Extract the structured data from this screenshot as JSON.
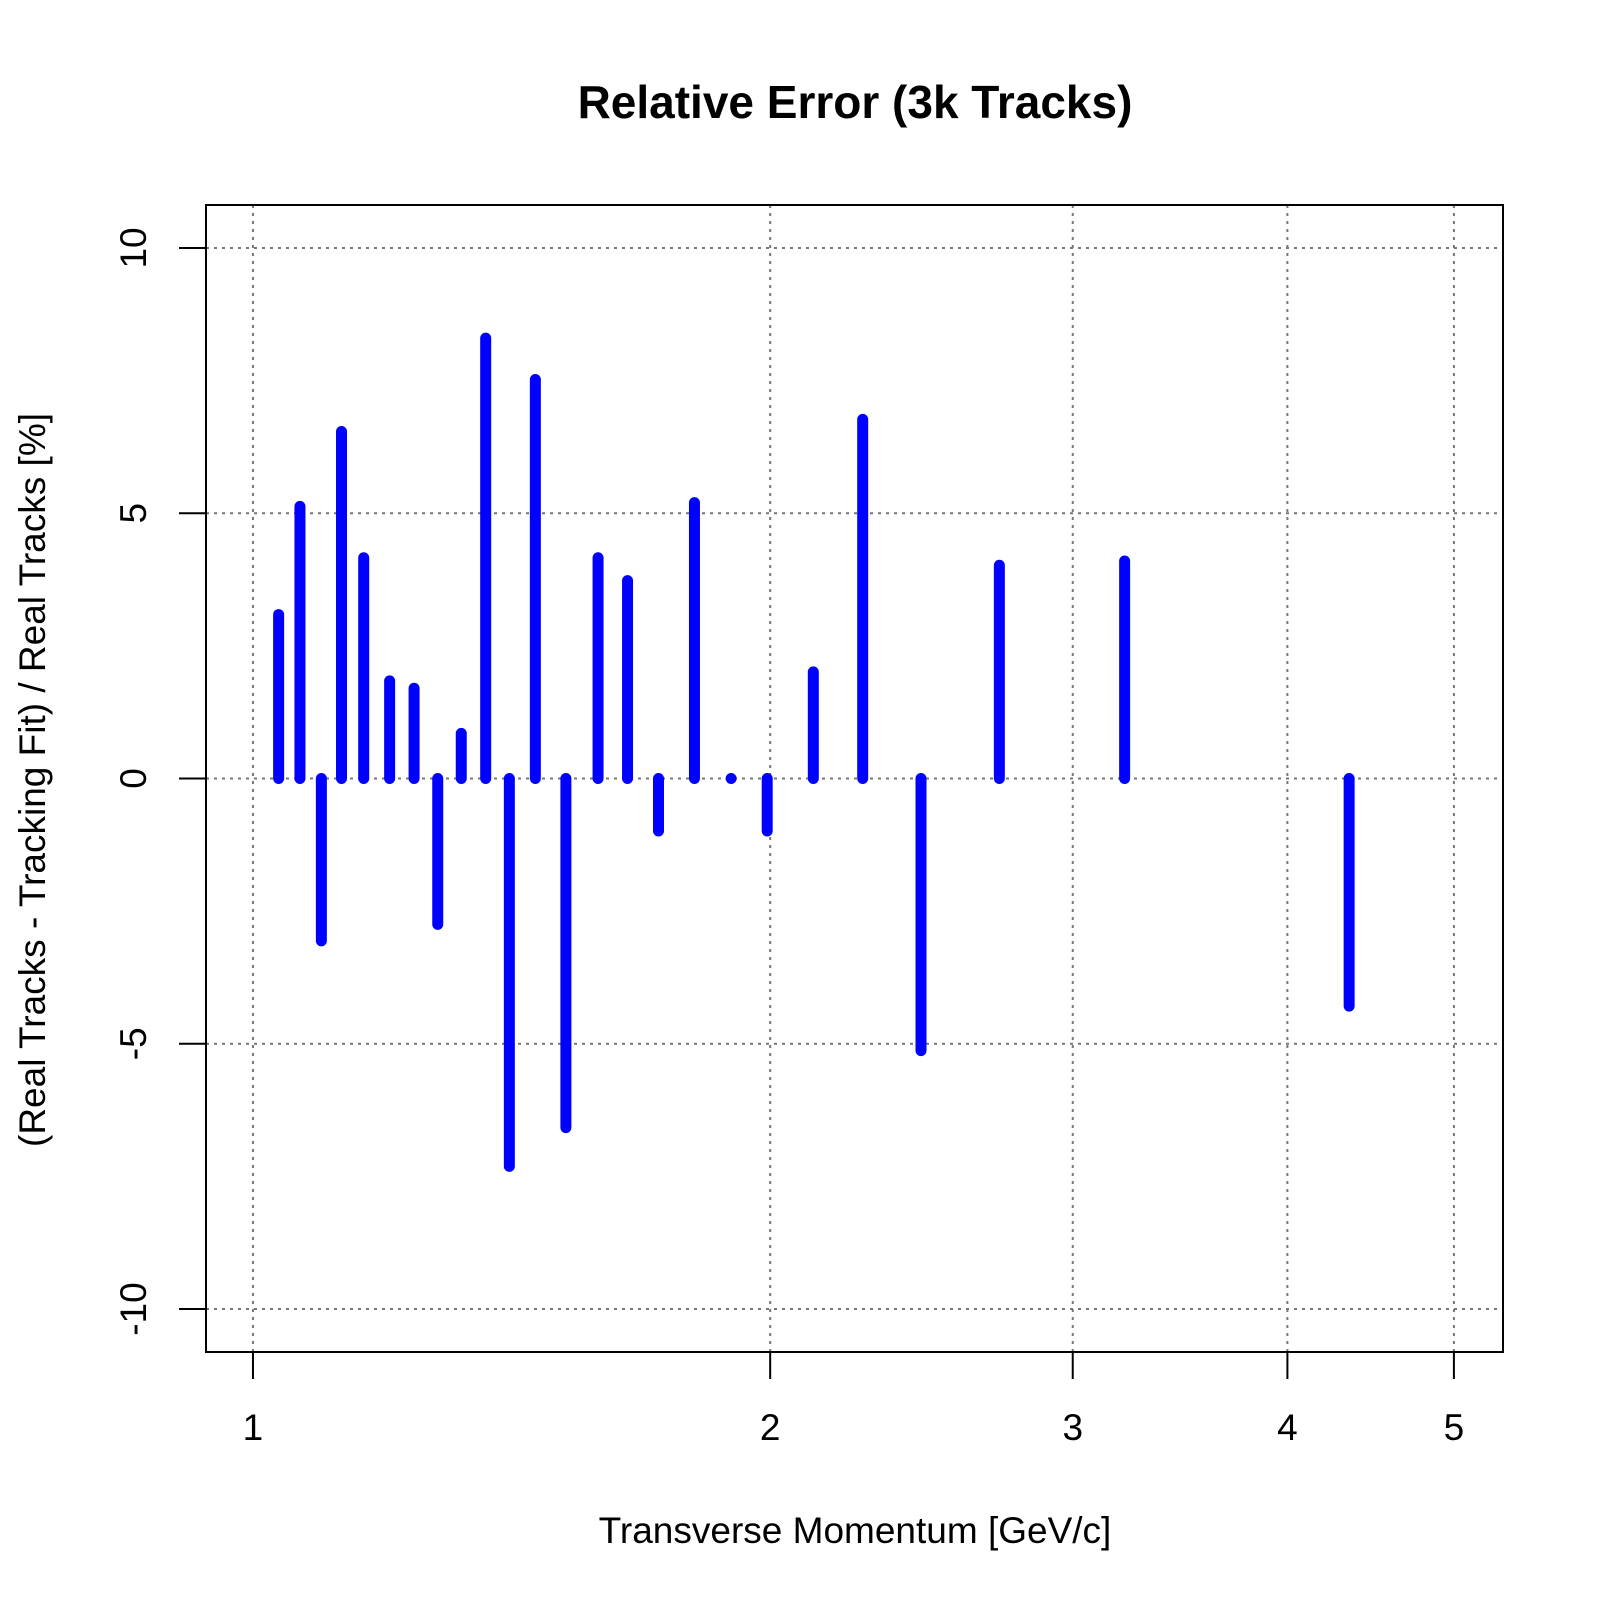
{
  "chart_data": {
    "type": "bar_lines",
    "title": "Relative Error (3k Tracks)",
    "x_label": "Transverse Momentum [GeV/c]",
    "y_label": "(Real Tracks - Tracking Fit) / Real Tracks [%]",
    "x": [
      1.035,
      1.065,
      1.096,
      1.126,
      1.16,
      1.201,
      1.241,
      1.281,
      1.322,
      1.366,
      1.41,
      1.46,
      1.521,
      1.588,
      1.652,
      1.722,
      1.807,
      1.898,
      1.992,
      2.119,
      2.264,
      2.448,
      2.719,
      3.216,
      4.345
    ],
    "values": [
      3.09,
      5.13,
      -3.06,
      6.54,
      4.16,
      1.84,
      1.7,
      -2.75,
      0.85,
      8.3,
      -7.31,
      7.52,
      -6.58,
      4.16,
      3.73,
      -0.99,
      5.2,
      0,
      -0.99,
      2.01,
      6.77,
      -5.13,
      4.02,
      4.1,
      -4.29
    ],
    "color": "#0000ff",
    "x_log": true,
    "xlim": [
      0.939,
      5.34
    ],
    "xticks": [
      1,
      2,
      3,
      4,
      5
    ],
    "ylim": [
      -10.81,
      10.81
    ],
    "yticks": [
      -10,
      -5,
      0,
      5,
      10
    ],
    "grid": true
  }
}
